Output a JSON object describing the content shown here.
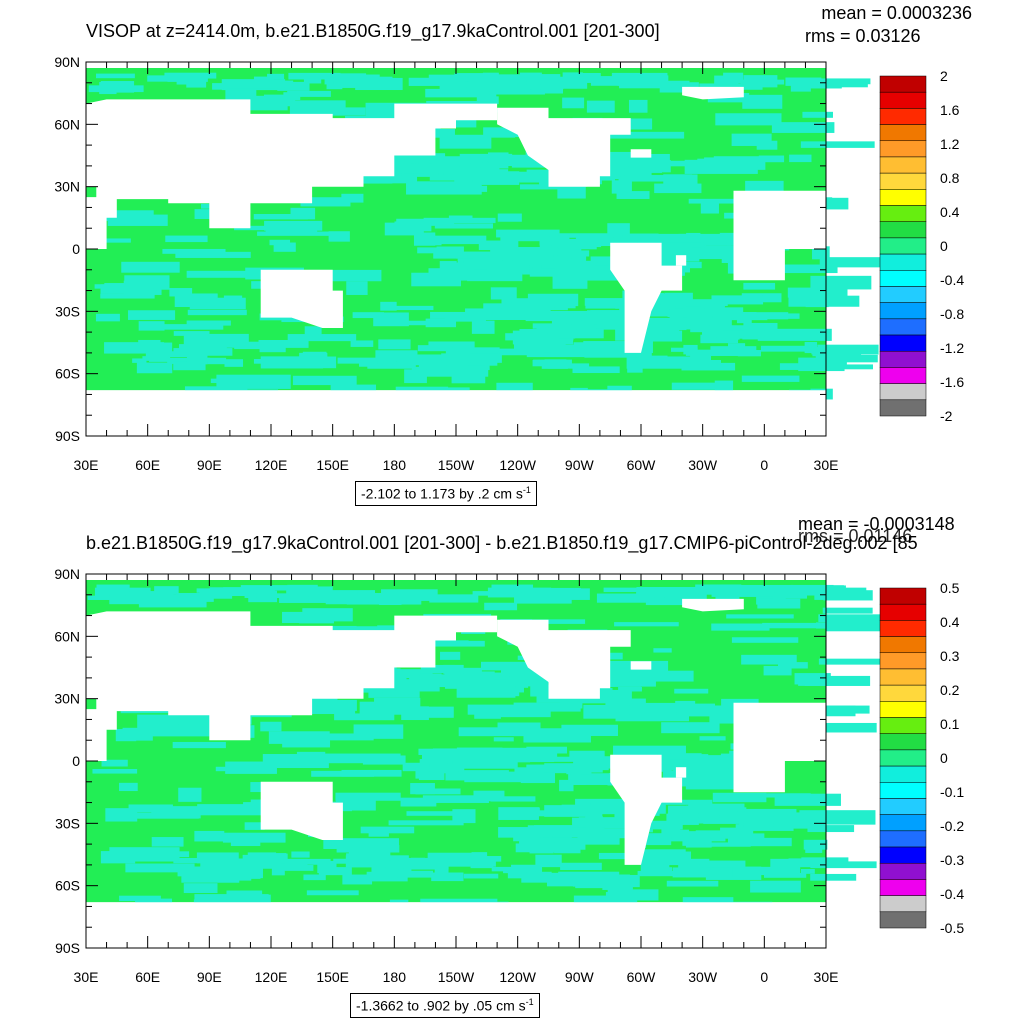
{
  "chart_data": [
    {
      "type": "heatmap",
      "title": "VISOP at z=2414.0m, b.e21.B1850G.f19_g17.9kaControl.001 [201-300]",
      "stats": {
        "mean": "mean = 0.0003236",
        "rms": "rms = 0.03126"
      },
      "y_ticks": [
        "90N",
        "60N",
        "30N",
        "0",
        "30S",
        "60S",
        "90S"
      ],
      "x_ticks": [
        "30E",
        "60E",
        "90E",
        "120E",
        "150E",
        "180",
        "150W",
        "120W",
        "90W",
        "60W",
        "30W",
        "0",
        "30E"
      ],
      "colorbar": {
        "levels": [
          "2",
          "1.6",
          "1.2",
          "0.8",
          "0.4",
          "0",
          "-0.4",
          "-0.8",
          "-1.2",
          "-1.6",
          "-2"
        ],
        "colors": [
          "#c00000",
          "#e60000",
          "#ff2a00",
          "#f07800",
          "#ff9a28",
          "#ffbe32",
          "#ffd83c",
          "#ffff00",
          "#66ee10",
          "#22dd44",
          "#22ee88",
          "#11eedd",
          "#00ffff",
          "#22ccff",
          "#00a0ff",
          "#1e6eff",
          "#0000ff",
          "#9010d0",
          "#ee00ee",
          "#cccccc",
          "#707070"
        ]
      },
      "range_text": "-2.102 to 1.173 by .2 cm s",
      "range_unit_exp": "-1",
      "field_colors": {
        "dominant": "#22ee55",
        "secondary": "#22eecc",
        "land": "#ffffff"
      }
    },
    {
      "type": "heatmap",
      "title": "b.e21.B1850G.f19_g17.9kaControl.001 [201-300] - b.e21.B1850.f19_g17.CMIP6-piControl-2deg.002 [85",
      "stats": {
        "mean": "mean = -0.0003148",
        "rms": "rms = 0.01146"
      },
      "y_ticks": [
        "90N",
        "60N",
        "30N",
        "0",
        "30S",
        "60S",
        "90S"
      ],
      "x_ticks": [
        "30E",
        "60E",
        "90E",
        "120E",
        "150E",
        "180",
        "150W",
        "120W",
        "90W",
        "60W",
        "30W",
        "0",
        "30E"
      ],
      "colorbar": {
        "levels": [
          "0.5",
          "0.4",
          "0.3",
          "0.2",
          "0.1",
          "0",
          "-0.1",
          "-0.2",
          "-0.3",
          "-0.4",
          "-0.5"
        ],
        "colors": [
          "#c00000",
          "#e60000",
          "#ff2a00",
          "#f07800",
          "#ff9a28",
          "#ffbe32",
          "#ffd83c",
          "#ffff00",
          "#66ee10",
          "#22dd44",
          "#22ee88",
          "#11eedd",
          "#00ffff",
          "#22ccff",
          "#00a0ff",
          "#1e6eff",
          "#0000ff",
          "#9010d0",
          "#ee00ee",
          "#cccccc",
          "#707070"
        ]
      },
      "range_text": "-1.3662 to .902 by .05 cm s",
      "range_unit_exp": "-1",
      "field_colors": {
        "dominant": "#22ee55",
        "secondary": "#22eecc",
        "land": "#ffffff"
      }
    }
  ]
}
